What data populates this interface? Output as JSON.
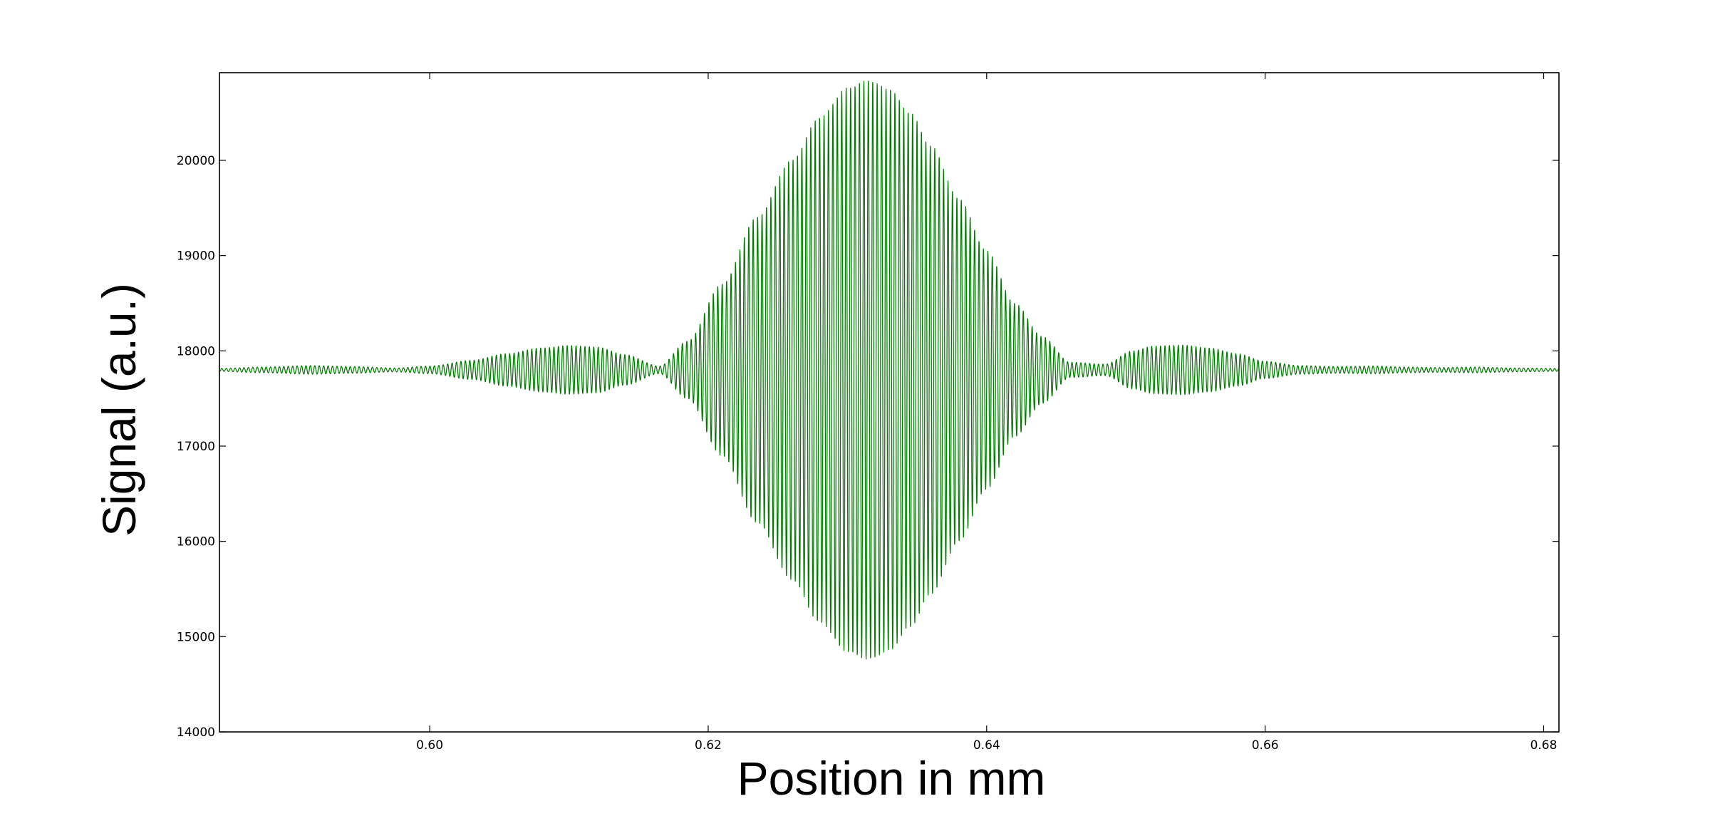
{
  "chart_data": {
    "type": "line",
    "title": "",
    "xlabel": "Position in mm",
    "ylabel": "Signal (a.u.)",
    "xlim": [
      0.5849,
      0.6811
    ],
    "ylim": [
      14000,
      20920
    ],
    "x_ticks": [
      "0.60",
      "0.62",
      "0.64",
      "0.66",
      "0.68"
    ],
    "y_ticks": [
      "14000",
      "15000",
      "16000",
      "17000",
      "18000",
      "19000",
      "20000"
    ],
    "grid": false,
    "legend": "none",
    "series": [
      {
        "color": "#007a00",
        "baseline": 17800,
        "fringe_period_mm": 0.000318,
        "envelope": {
          "x": [
            0.5849,
            0.588,
            0.5915,
            0.5945,
            0.5975,
            0.6,
            0.603,
            0.6055,
            0.608,
            0.61,
            0.612,
            0.614,
            0.6165,
            0.6185,
            0.621,
            0.6235,
            0.626,
            0.628,
            0.63,
            0.6315,
            0.633,
            0.6345,
            0.636,
            0.638,
            0.64,
            0.642,
            0.644,
            0.646,
            0.6485,
            0.6505,
            0.652,
            0.654,
            0.656,
            0.658,
            0.66,
            0.6625,
            0.665,
            0.668,
            0.67,
            0.6725,
            0.675,
            0.678,
            0.6811
          ],
          "amplitude": [
            15,
            30,
            45,
            35,
            20,
            40,
            100,
            170,
            230,
            255,
            240,
            160,
            40,
            300,
            900,
            1600,
            2200,
            2650,
            2960,
            3040,
            2950,
            2700,
            2350,
            1800,
            1250,
            700,
            350,
            80,
            60,
            200,
            250,
            260,
            230,
            170,
            90,
            45,
            35,
            40,
            30,
            25,
            30,
            20,
            15
          ]
        }
      }
    ]
  }
}
